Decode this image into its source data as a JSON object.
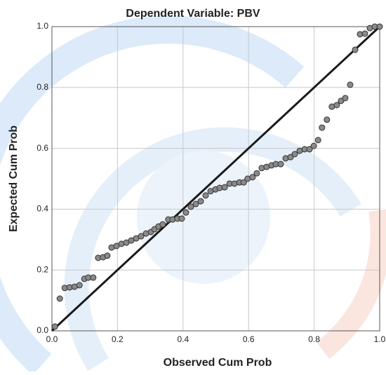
{
  "chart_data": {
    "type": "scatter",
    "title": "Dependent Variable: PBV",
    "x_label": "Observed Cum Prob",
    "y_label": "Expected Cum Prob",
    "x": [
      0.009,
      0.024,
      0.039,
      0.054,
      0.069,
      0.084,
      0.099,
      0.111,
      0.126,
      0.141,
      0.156,
      0.169,
      0.182,
      0.197,
      0.212,
      0.227,
      0.242,
      0.257,
      0.272,
      0.287,
      0.302,
      0.313,
      0.325,
      0.338,
      0.355,
      0.368,
      0.383,
      0.396,
      0.409,
      0.424,
      0.439,
      0.454,
      0.469,
      0.484,
      0.499,
      0.512,
      0.527,
      0.542,
      0.557,
      0.572,
      0.585,
      0.597,
      0.612,
      0.625,
      0.64,
      0.655,
      0.67,
      0.683,
      0.698,
      0.713,
      0.728,
      0.741,
      0.756,
      0.771,
      0.786,
      0.799,
      0.812,
      0.824,
      0.839,
      0.854,
      0.869,
      0.882,
      0.895,
      0.91,
      0.925,
      0.94,
      0.955,
      0.97,
      0.985,
      1.0
    ],
    "series": [
      {
        "color": "#8a8a8a",
        "values": [
          0.014,
          0.106,
          0.141,
          0.143,
          0.145,
          0.15,
          0.171,
          0.175,
          0.175,
          0.24,
          0.242,
          0.247,
          0.274,
          0.279,
          0.286,
          0.29,
          0.297,
          0.304,
          0.311,
          0.32,
          0.325,
          0.334,
          0.343,
          0.35,
          0.366,
          0.366,
          0.369,
          0.369,
          0.389,
          0.408,
          0.417,
          0.426,
          0.445,
          0.459,
          0.465,
          0.47,
          0.472,
          0.484,
          0.484,
          0.488,
          0.488,
          0.5,
          0.505,
          0.518,
          0.535,
          0.539,
          0.544,
          0.548,
          0.548,
          0.567,
          0.571,
          0.581,
          0.592,
          0.597,
          0.597,
          0.608,
          0.627,
          0.668,
          0.694,
          0.737,
          0.742,
          0.756,
          0.765,
          0.809,
          0.924,
          0.975,
          0.977,
          0.995,
          1.0,
          1.0
        ]
      }
    ],
    "xlim": [
      0,
      1
    ],
    "ylim": [
      0,
      1
    ],
    "xticks": [
      {
        "value": 0,
        "label": "0.0"
      },
      0.2,
      0.4,
      0.6,
      0.8,
      {
        "value": 1,
        "label": "1.0"
      }
    ],
    "yticks": [
      {
        "value": 0,
        "label": "0.0"
      },
      0.2,
      0.4,
      0.6,
      0.8,
      {
        "value": 1,
        "label": "1.0"
      }
    ],
    "grid": true,
    "reference_line_color": "#1a1a1a"
  }
}
